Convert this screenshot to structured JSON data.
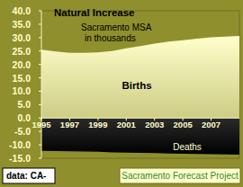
{
  "chart_data": {
    "type": "area",
    "title": "Natural Increase",
    "subtitle": [
      "Sacramento MSA",
      "in thousands"
    ],
    "x": [
      1995,
      1996,
      1997,
      1998,
      1999,
      2000,
      2001,
      2002,
      2003,
      2004,
      2005,
      2006,
      2007,
      2008,
      2009
    ],
    "series": [
      {
        "name": "Births",
        "color": "#ffffcc",
        "values": [
          25.5,
          24.8,
          24.3,
          24.3,
          24.5,
          25.0,
          26.0,
          26.8,
          27.8,
          28.5,
          29.0,
          29.6,
          30.1,
          30.4,
          30.6
        ]
      },
      {
        "name": "Deaths",
        "color": "#2a2a2a",
        "values": [
          -12.2,
          -12.3,
          -12.4,
          -12.5,
          -12.6,
          -12.8,
          -12.9,
          -13.0,
          -13.1,
          -13.2,
          -13.3,
          -13.4,
          -13.5,
          -13.6,
          -13.7
        ]
      }
    ],
    "xlim": [
      1995,
      2009
    ],
    "xticks": [
      1995,
      1997,
      1999,
      2001,
      2003,
      2005,
      2007
    ],
    "ylim": [
      -15,
      40
    ],
    "yticks": [
      {
        "value": -15,
        "label": "-15.0"
      },
      {
        "value": -10,
        "label": "-10.0"
      },
      {
        "value": -5,
        "label": "-5.0"
      },
      {
        "value": 0,
        "label": "0.0"
      },
      {
        "value": 5,
        "label": "5.0"
      },
      {
        "value": 10,
        "label": "10.0"
      },
      {
        "value": 15,
        "label": "15.0"
      },
      {
        "value": 20,
        "label": "20.0"
      },
      {
        "value": 25,
        "label": "25.0"
      },
      {
        "value": 30,
        "label": "30.0"
      },
      {
        "value": 35,
        "label": "35.0"
      },
      {
        "value": 40,
        "label": "40.0"
      }
    ],
    "grid": false,
    "source": "data: CA-",
    "credit": "Sacramento Forecast Project"
  }
}
